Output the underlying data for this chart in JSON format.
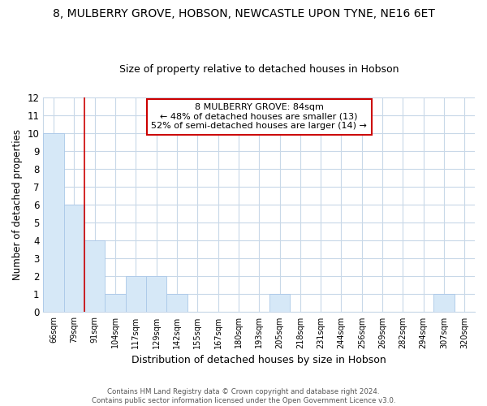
{
  "title": "8, MULBERRY GROVE, HOBSON, NEWCASTLE UPON TYNE, NE16 6ET",
  "subtitle": "Size of property relative to detached houses in Hobson",
  "xlabel": "Distribution of detached houses by size in Hobson",
  "ylabel": "Number of detached properties",
  "categories": [
    "66sqm",
    "79sqm",
    "91sqm",
    "104sqm",
    "117sqm",
    "129sqm",
    "142sqm",
    "155sqm",
    "167sqm",
    "180sqm",
    "193sqm",
    "205sqm",
    "218sqm",
    "231sqm",
    "244sqm",
    "256sqm",
    "269sqm",
    "282sqm",
    "294sqm",
    "307sqm",
    "320sqm"
  ],
  "values": [
    10,
    6,
    4,
    1,
    2,
    2,
    1,
    0,
    0,
    0,
    0,
    1,
    0,
    0,
    0,
    0,
    0,
    0,
    0,
    1,
    0
  ],
  "bar_color": "#d6e8f7",
  "bar_edge_color": "#aac8e8",
  "ylim": [
    0,
    12
  ],
  "yticks": [
    0,
    1,
    2,
    3,
    4,
    5,
    6,
    7,
    8,
    9,
    10,
    11,
    12
  ],
  "annotation_box_text": "8 MULBERRY GROVE: 84sqm\n← 48% of detached houses are smaller (13)\n52% of semi-detached houses are larger (14) →",
  "annotation_box_color": "#ffffff",
  "annotation_box_edge_color": "#cc0000",
  "vertical_line_x": 1.5,
  "vertical_line_color": "#cc0000",
  "grid_color": "#c8d8e8",
  "background_color": "#ffffff",
  "title_fontsize": 10,
  "subtitle_fontsize": 9,
  "footnote": "Contains HM Land Registry data © Crown copyright and database right 2024.\nContains public sector information licensed under the Open Government Licence v3.0."
}
